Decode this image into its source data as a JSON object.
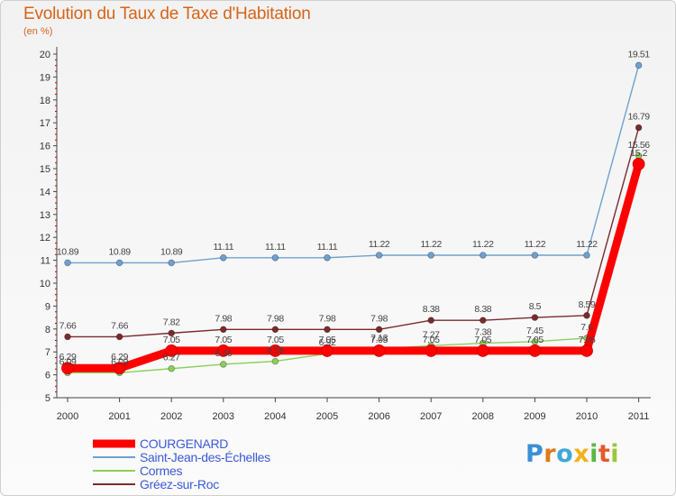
{
  "header": {
    "title": "Evolution du Taux de Taxe d'Habitation",
    "subtitle": "(en %)"
  },
  "logo": {
    "text": "Proxiti",
    "letters": [
      "P",
      "r",
      "o",
      "x",
      "i",
      "t",
      "i"
    ]
  },
  "chart_data": {
    "type": "line",
    "x": [
      "2000",
      "2001",
      "2002",
      "2003",
      "2004",
      "2005",
      "2006",
      "2007",
      "2008",
      "2009",
      "2010",
      "2011"
    ],
    "yticks": [
      5,
      6,
      7,
      8,
      9,
      10,
      11,
      12,
      13,
      14,
      15,
      16,
      17,
      18,
      19,
      20
    ],
    "ylim": [
      5,
      20
    ],
    "grid": false,
    "legend_position": "bottom-left",
    "series": [
      {
        "name": "COURGENARD",
        "color": "#ff0000",
        "values": [
          6.29,
          6.29,
          7.05,
          7.05,
          7.05,
          7.05,
          7.05,
          7.05,
          7.05,
          7.05,
          7.05,
          15.2
        ],
        "labels": [
          "6.29",
          "6.29",
          "7.05",
          "7.05",
          "7.05",
          "7.05",
          "7.05",
          "7.05",
          "7.05",
          "7.05",
          "7.05",
          "15.2"
        ]
      },
      {
        "name": "Saint-Jean-des-Échelles",
        "color": "#6fa0cf",
        "values": [
          10.89,
          10.89,
          10.89,
          11.11,
          11.11,
          11.11,
          11.22,
          11.22,
          11.22,
          11.22,
          11.22,
          19.51
        ],
        "labels": [
          "10.89",
          "10.89",
          "10.89",
          "11.11",
          "11.11",
          "11.11",
          "11.22",
          "11.22",
          "11.22",
          "11.22",
          "11.22",
          "19.51"
        ]
      },
      {
        "name": "Cormes",
        "color": "#8cd05a",
        "values": [
          6.09,
          6.09,
          6.27,
          6.46,
          6.59,
          6.92,
          7.13,
          7.27,
          7.38,
          7.45,
          7.6,
          15.56
        ],
        "labels": [
          "6.09",
          "6.09",
          "6.27",
          "6.46",
          "6.59",
          "6.92",
          "7.13",
          "7.27",
          "7.38",
          "7.45",
          "7.6",
          "15.56"
        ]
      },
      {
        "name": "Gréez-sur-Roc",
        "color": "#7b2a2a",
        "values": [
          7.66,
          7.66,
          7.82,
          7.98,
          7.98,
          7.98,
          7.98,
          8.38,
          8.38,
          8.5,
          8.59,
          16.79
        ],
        "labels": [
          "7.66",
          "7.66",
          "7.82",
          "7.98",
          "7.98",
          "7.98",
          "7.98",
          "8.38",
          "8.38",
          "8.5",
          "8.59",
          "16.79"
        ]
      }
    ]
  }
}
